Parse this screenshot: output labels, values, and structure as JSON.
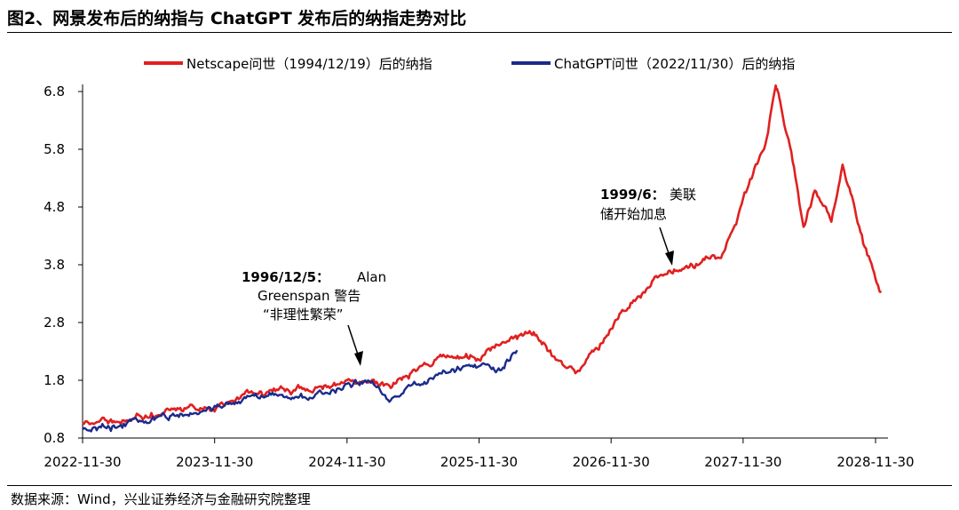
{
  "header": {
    "title": "图2、网景发布后的纳指与 ChatGPT 发布后的纳指走势对比"
  },
  "footer": {
    "source": "数据来源：Wind，兴业证券经济与金融研究院整理"
  },
  "chart_data": {
    "type": "line",
    "x_ticks": [
      "2022-11-30",
      "2023-11-30",
      "2024-11-30",
      "2025-11-30",
      "2026-11-30",
      "2027-11-30",
      "2028-11-30"
    ],
    "y_ticks": [
      0.8,
      1.8,
      2.8,
      3.8,
      4.8,
      5.8,
      6.8
    ],
    "ylim": [
      0.8,
      7.0
    ],
    "xlim": [
      "2022-11-30",
      "2028-12-15"
    ],
    "grid": false,
    "legend_position": "top",
    "series": [
      {
        "name": "Netscape问世（1994/12/19）后的纳指",
        "color": "#e02020",
        "points": [
          [
            "2022-11-30",
            1.0
          ],
          [
            "2023-02-28",
            1.08
          ],
          [
            "2023-05-31",
            1.2
          ],
          [
            "2023-08-31",
            1.33
          ],
          [
            "2023-11-30",
            1.38
          ],
          [
            "2024-02-28",
            1.55
          ],
          [
            "2024-05-31",
            1.66
          ],
          [
            "2024-08-31",
            1.68
          ],
          [
            "2024-11-30",
            1.84
          ],
          [
            "2025-01-31",
            1.88
          ],
          [
            "2025-03-31",
            1.72
          ],
          [
            "2025-05-31",
            1.95
          ],
          [
            "2025-08-31",
            2.25
          ],
          [
            "2025-11-30",
            2.18
          ],
          [
            "2026-02-28",
            2.55
          ],
          [
            "2026-04-30",
            2.6
          ],
          [
            "2026-06-30",
            2.15
          ],
          [
            "2026-08-31",
            1.95
          ],
          [
            "2026-10-31",
            2.45
          ],
          [
            "2026-11-30",
            2.75
          ],
          [
            "2027-01-31",
            3.2
          ],
          [
            "2027-03-31",
            3.55
          ],
          [
            "2027-05-31",
            3.7
          ],
          [
            "2027-07-31",
            3.85
          ],
          [
            "2027-09-30",
            3.95
          ],
          [
            "2027-11-30",
            4.95
          ],
          [
            "2028-01-31",
            5.9
          ],
          [
            "2028-02-28",
            6.9
          ],
          [
            "2028-03-15",
            6.55
          ],
          [
            "2028-04-15",
            5.6
          ],
          [
            "2028-05-15",
            4.4
          ],
          [
            "2028-06-15",
            5.1
          ],
          [
            "2028-07-31",
            4.55
          ],
          [
            "2028-08-31",
            5.55
          ],
          [
            "2028-09-30",
            4.85
          ],
          [
            "2028-10-31",
            4.1
          ],
          [
            "2028-11-30",
            3.55
          ],
          [
            "2028-12-15",
            3.35
          ]
        ]
      },
      {
        "name": "ChatGPT问世（2022/11/30）后的纳指",
        "color": "#1a2b8c",
        "points": [
          [
            "2022-11-30",
            0.95
          ],
          [
            "2023-02-28",
            1.02
          ],
          [
            "2023-05-31",
            1.12
          ],
          [
            "2023-08-31",
            1.22
          ],
          [
            "2023-11-30",
            1.33
          ],
          [
            "2024-02-28",
            1.48
          ],
          [
            "2024-05-31",
            1.55
          ],
          [
            "2024-08-31",
            1.5
          ],
          [
            "2024-11-30",
            1.72
          ],
          [
            "2025-01-31",
            1.78
          ],
          [
            "2025-03-31",
            1.45
          ],
          [
            "2025-05-31",
            1.72
          ],
          [
            "2025-08-31",
            1.96
          ],
          [
            "2025-11-30",
            2.05
          ],
          [
            "2026-01-31",
            1.95
          ],
          [
            "2026-03-15",
            2.32
          ]
        ]
      }
    ],
    "annotations": [
      {
        "date_label": "1996/12/5：",
        "lines": [
          "Alan",
          "Greenspan 警告",
          "“非理性繁荣”"
        ],
        "target_x": "2024-11-30",
        "target_y": 1.85
      },
      {
        "date_label": "1999/6：",
        "lines": [
          "美联",
          "储开始加息"
        ],
        "target_x": "2027-05-31",
        "target_y": 3.7
      }
    ]
  }
}
